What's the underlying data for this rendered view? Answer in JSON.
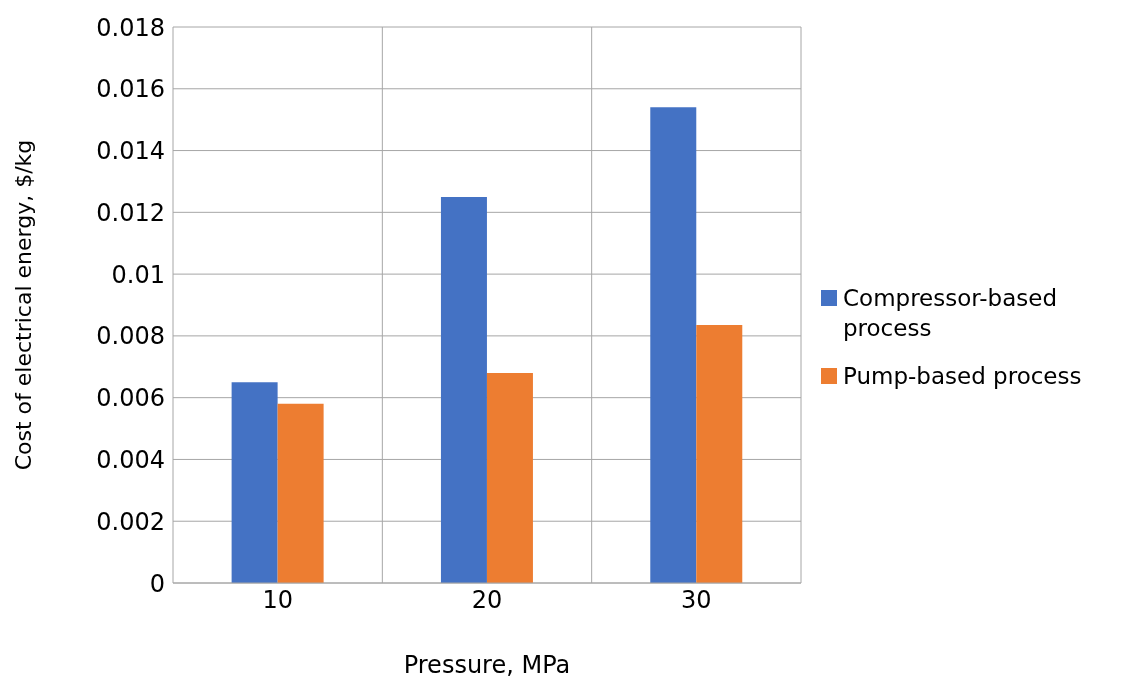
{
  "chart_data": {
    "type": "bar",
    "xlabel": "Pressure, MPa",
    "ylabel": "Cost of electrical energy, $/kg",
    "categories": [
      "10",
      "20",
      "30"
    ],
    "series": [
      {
        "name": "Compressor-based process",
        "color": "#4472c4",
        "values": [
          0.0065,
          0.0125,
          0.0154
        ]
      },
      {
        "name": "Pump-based process",
        "color": "#ed7d31",
        "values": [
          0.0058,
          0.0068,
          0.00835
        ]
      }
    ],
    "ylim": [
      0,
      0.018
    ],
    "yticks": [
      0,
      0.002,
      0.004,
      0.006,
      0.008,
      0.01,
      0.012,
      0.014,
      0.016,
      0.018
    ],
    "grid": true,
    "legend": "right"
  }
}
